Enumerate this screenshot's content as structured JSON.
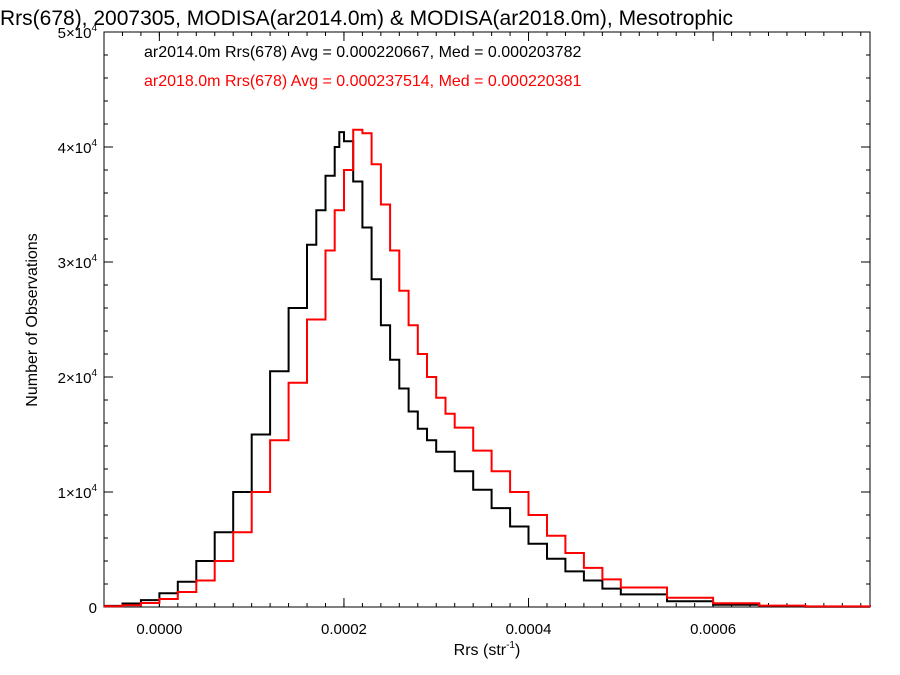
{
  "chart_data": {
    "type": "line",
    "title": "Rrs(678), 2007305, MODISA(ar2014.0m) & MODISA(ar2018.0m), Mesotrophic",
    "xlabel": "Rrs (str",
    "xlabel_exp": "-1",
    "xlabel_close": ")",
    "ylabel": "Number of Observations",
    "xlim": [
      -6e-05,
      0.00077
    ],
    "ylim": [
      0,
      50000
    ],
    "x_ticks": [
      {
        "value": 0.0,
        "label": "0.0000"
      },
      {
        "value": 0.0002,
        "label": "0.0002"
      },
      {
        "value": 0.0004,
        "label": "0.0004"
      },
      {
        "value": 0.0006,
        "label": "0.0006"
      }
    ],
    "y_ticks": [
      {
        "value": 0,
        "mant": "0",
        "exp": ""
      },
      {
        "value": 10000,
        "mant": "1×10",
        "exp": "4"
      },
      {
        "value": 20000,
        "mant": "2×10",
        "exp": "4"
      },
      {
        "value": 30000,
        "mant": "3×10",
        "exp": "4"
      },
      {
        "value": 40000,
        "mant": "4×10",
        "exp": "4"
      },
      {
        "value": 50000,
        "mant": "5×10",
        "exp": "4"
      }
    ],
    "series": [
      {
        "name": "ar2014.0m Rrs(678) Avg = 0.000220667, Med = 0.000203782",
        "color": "#000000",
        "x": [
          -6e-05,
          -4e-05,
          -2e-05,
          0.0,
          2e-05,
          4e-05,
          6e-05,
          8e-05,
          0.0001,
          0.00012,
          0.00014,
          0.00016,
          0.00017,
          0.00018,
          0.00019,
          0.000195,
          0.0002,
          0.00021,
          0.00022,
          0.00023,
          0.00024,
          0.00025,
          0.00026,
          0.00027,
          0.00028,
          0.00029,
          0.0003,
          0.00032,
          0.00034,
          0.00036,
          0.00038,
          0.0004,
          0.00042,
          0.00044,
          0.00046,
          0.00048,
          0.0005,
          0.00055,
          0.0006,
          0.00065,
          0.0007,
          0.00077
        ],
        "values": [
          100,
          300,
          600,
          1200,
          2200,
          4000,
          6500,
          10000,
          15000,
          20500,
          26000,
          31500,
          34500,
          37500,
          40000,
          41300,
          40500,
          37000,
          33000,
          28500,
          24500,
          21500,
          19000,
          17000,
          15500,
          14500,
          13500,
          11800,
          10200,
          8600,
          7000,
          5500,
          4200,
          3100,
          2300,
          1600,
          1100,
          500,
          200,
          80,
          30,
          10
        ]
      },
      {
        "name": "ar2018.0m Rrs(678) Avg = 0.000237514, Med = 0.000220381",
        "color": "#ff0000",
        "x": [
          -6e-05,
          -4e-05,
          -2e-05,
          0.0,
          2e-05,
          4e-05,
          6e-05,
          8e-05,
          0.0001,
          0.00012,
          0.00014,
          0.00016,
          0.00018,
          0.00019,
          0.0002,
          0.00021,
          0.00022,
          0.00023,
          0.00024,
          0.00025,
          0.00026,
          0.00027,
          0.00028,
          0.00029,
          0.0003,
          0.00031,
          0.00032,
          0.00034,
          0.00036,
          0.00038,
          0.0004,
          0.00042,
          0.00044,
          0.00046,
          0.00048,
          0.0005,
          0.00055,
          0.0006,
          0.00065,
          0.0007,
          0.00077
        ],
        "values": [
          60,
          150,
          350,
          700,
          1300,
          2300,
          4000,
          6500,
          10000,
          14500,
          19500,
          25000,
          31000,
          34500,
          38000,
          41500,
          41200,
          38500,
          35000,
          31000,
          27500,
          24500,
          22000,
          20000,
          18200,
          16800,
          15600,
          13600,
          11800,
          10000,
          8000,
          6200,
          4700,
          3400,
          2400,
          1700,
          800,
          330,
          120,
          50,
          15
        ]
      }
    ],
    "legend_position": "top-left",
    "grid": false
  }
}
